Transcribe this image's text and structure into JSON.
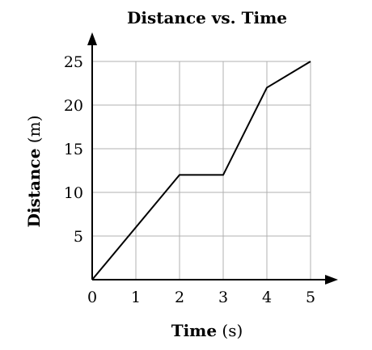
{
  "chart_data": {
    "type": "line",
    "title": "Distance vs. Time",
    "xlabel": {
      "name": "Time",
      "unit": "(s)"
    },
    "ylabel": {
      "name": "Distance",
      "unit": "(m)"
    },
    "xlim": [
      0,
      5
    ],
    "ylim": [
      0,
      25
    ],
    "x_ticks": [
      "0",
      "1",
      "2",
      "3",
      "4",
      "5"
    ],
    "y_ticks": [
      "5",
      "10",
      "15",
      "20",
      "25"
    ],
    "grid": true,
    "series": [
      {
        "x": [
          0,
          2,
          3,
          4,
          5
        ],
        "y": [
          0,
          12,
          12,
          22,
          25
        ]
      }
    ],
    "colors": {
      "grid": "#b0b0b0",
      "axis": "#000000",
      "line": "#000000"
    }
  }
}
